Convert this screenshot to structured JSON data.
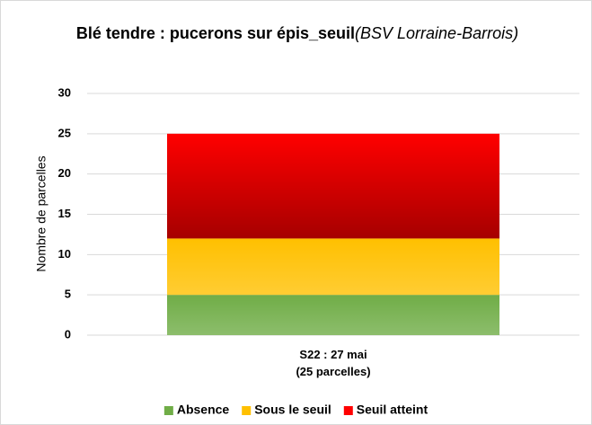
{
  "chart_data": {
    "type": "stacked_bar",
    "title": "Blé tendre : pucerons sur épis_seuil",
    "subtitle": "(BSV Lorraine-Barrois)",
    "ylabel": "Nombre de parcelles",
    "categories": [
      "S22 : 27 mai\n(25 parcelles)"
    ],
    "series": [
      {
        "name": "Absence",
        "color": "#70ad47",
        "values": [
          5
        ]
      },
      {
        "name": "Sous le seuil",
        "color": "#ffc000",
        "values": [
          7
        ]
      },
      {
        "name": "Seuil atteint",
        "color": "#ff0000",
        "values": [
          13
        ]
      }
    ],
    "ylim": [
      0,
      30
    ],
    "yticks": [
      0,
      5,
      10,
      15,
      20,
      25,
      30
    ],
    "grid": true,
    "legend": "bottom"
  }
}
